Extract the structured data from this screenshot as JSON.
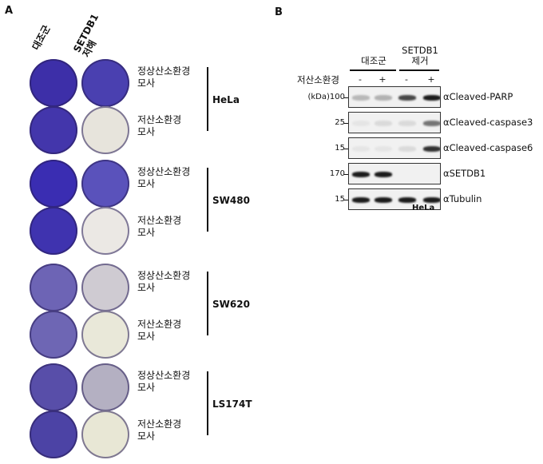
{
  "panel_a": {
    "letter": "A",
    "col_headers": [
      "대조군",
      "SETDB1\n저해"
    ],
    "condition_normoxia": "정상산소환경\n모사",
    "condition_hypoxia": "저산소환경\n모사",
    "cell_lines": [
      {
        "name": "HeLa",
        "colors": {
          "ctrl_n": "#3d2fa8",
          "si_n": "#4a40b0",
          "ctrl_h": "#4336ab",
          "si_h": "#e7e4dc"
        }
      },
      {
        "name": "SW480",
        "colors": {
          "ctrl_n": "#3a2db2",
          "si_n": "#5a52bb",
          "ctrl_h": "#3f33af",
          "si_h": "#ebe8e4"
        }
      },
      {
        "name": "SW620",
        "colors": {
          "ctrl_n": "#6d64b5",
          "si_n": "#cfcbd2",
          "ctrl_h": "#6e66b4",
          "si_h": "#e9e8d9"
        }
      },
      {
        "name": "LS174T",
        "colors": {
          "ctrl_n": "#584ea9",
          "si_n": "#b4b0c2",
          "ctrl_h": "#4c43a5",
          "si_h": "#e8e7d5"
        }
      }
    ]
  },
  "panel_b": {
    "letter": "B",
    "groups": [
      "대조군",
      "SETDB1\n제거"
    ],
    "treatment_label": "저산소환경",
    "lane_signs": [
      "-",
      "+",
      "-",
      "+"
    ],
    "blots": [
      {
        "mw": "(kDa)100",
        "antibody": "αCleaved-PARP",
        "intensity": [
          0.25,
          0.28,
          0.75,
          0.95
        ]
      },
      {
        "mw": "25",
        "antibody": "αCleaved-caspase3",
        "intensity": [
          0.05,
          0.1,
          0.1,
          0.55
        ]
      },
      {
        "mw": "15",
        "antibody": "αCleaved-caspase6",
        "intensity": [
          0.05,
          0.05,
          0.1,
          0.85
        ]
      },
      {
        "mw": "170",
        "antibody": "αSETDB1",
        "intensity": [
          0.95,
          0.95,
          0.0,
          0.0
        ]
      },
      {
        "mw": "15",
        "antibody": "αTubulin",
        "intensity": [
          0.95,
          0.95,
          0.95,
          0.95
        ]
      }
    ],
    "cell_label": "HeLa"
  }
}
